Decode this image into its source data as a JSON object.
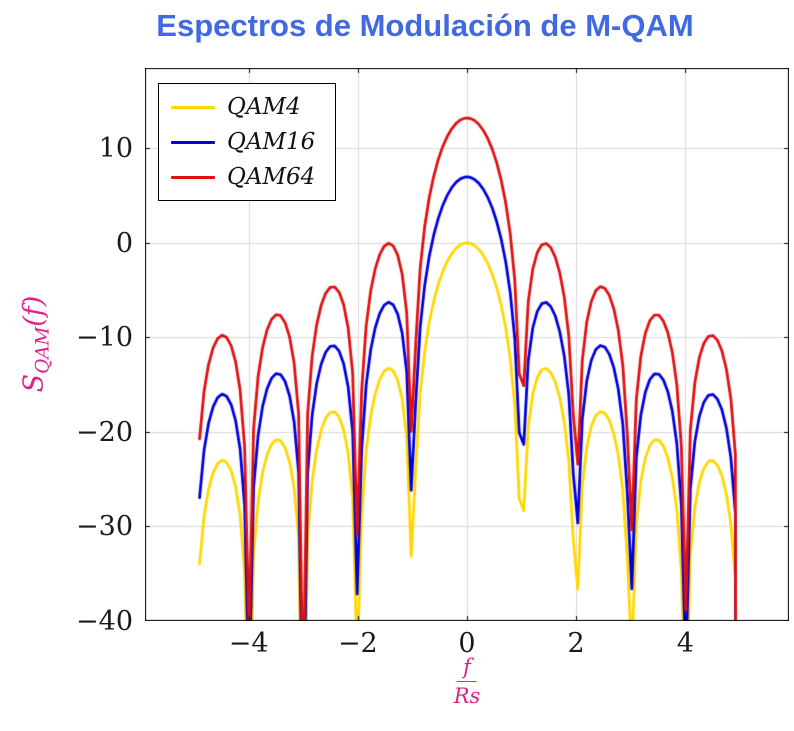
{
  "title": "Espectros de Modulación de M-QAM",
  "colors": {
    "title": "#4169E1",
    "axis_label": "#E0218A",
    "grid": "#D8D8D8",
    "frame": "#000000",
    "tick_text": "#1A1A1A",
    "legend_border": "#000000",
    "legend_bg": "#FFFFFF"
  },
  "chart_data": {
    "type": "line",
    "title": "Espectros de Modulación de M-QAM",
    "xlabel": {
      "num": "f",
      "den": "Rs"
    },
    "ylabel": {
      "base": "S",
      "sub": "QAM",
      "suffix": "(f)"
    },
    "xlim": [
      -5.9,
      5.9
    ],
    "ylim": [
      -40,
      18.5
    ],
    "xticks": [
      {
        "value": -4,
        "label": "−4"
      },
      {
        "value": -2,
        "label": "−2"
      },
      {
        "value": 0,
        "label": "0"
      },
      {
        "value": 2,
        "label": "2"
      },
      {
        "value": 4,
        "label": "4"
      }
    ],
    "yticks": [
      {
        "value": 10,
        "label": "10"
      },
      {
        "value": 0,
        "label": "0"
      },
      {
        "value": -10,
        "label": "−10"
      },
      {
        "value": -20,
        "label": "−20"
      },
      {
        "value": -30,
        "label": "−30"
      },
      {
        "value": -40,
        "label": "−40"
      }
    ],
    "grid": "major",
    "legend_position": "top-left",
    "series": [
      {
        "name": "QAM4",
        "color": "#FFD700",
        "offset_db": 0,
        "peak_db": 0
      },
      {
        "name": "QAM16",
        "color": "#0000DC",
        "offset_db": 6.99,
        "peak_db": 6.99
      },
      {
        "name": "QAM64",
        "color": "#E01010",
        "offset_db": 13.22,
        "peak_db": 13.22
      }
    ],
    "model": {
      "formula": "y(f) = offset_db + 20*log10(|sin(pi*f)/(pi*f)|)",
      "domain": [
        -4.9,
        5.0
      ],
      "samples": 121,
      "nulls_at": [
        -4,
        -3,
        -2,
        -1,
        1,
        2,
        3,
        4
      ]
    }
  }
}
